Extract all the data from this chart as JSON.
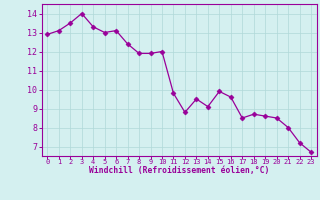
{
  "x": [
    0,
    1,
    2,
    3,
    4,
    5,
    6,
    7,
    8,
    9,
    10,
    11,
    12,
    13,
    14,
    15,
    16,
    17,
    18,
    19,
    20,
    21,
    22,
    23
  ],
  "y": [
    12.9,
    13.1,
    13.5,
    14.0,
    13.3,
    13.0,
    13.1,
    12.4,
    11.9,
    11.9,
    12.0,
    9.8,
    8.8,
    9.5,
    9.1,
    9.9,
    9.6,
    8.5,
    8.7,
    8.6,
    8.5,
    8.0,
    7.2,
    6.7
  ],
  "line_color": "#990099",
  "marker": "D",
  "marker_size": 2.5,
  "bg_color": "#d4f0f0",
  "grid_color": "#b0d8d8",
  "xlabel": "Windchill (Refroidissement éolien,°C)",
  "xlabel_color": "#990099",
  "tick_color": "#990099",
  "ylim": [
    6.5,
    14.5
  ],
  "yticks": [
    7,
    8,
    9,
    10,
    11,
    12,
    13,
    14
  ],
  "xticks": [
    0,
    1,
    2,
    3,
    4,
    5,
    6,
    7,
    8,
    9,
    10,
    11,
    12,
    13,
    14,
    15,
    16,
    17,
    18,
    19,
    20,
    21,
    22,
    23
  ]
}
